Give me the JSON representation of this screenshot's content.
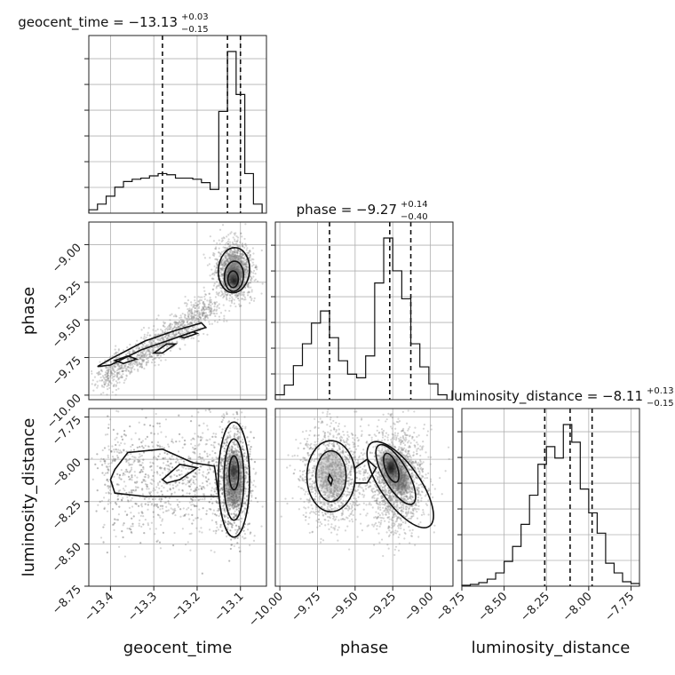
{
  "chart_data": {
    "type": "corner",
    "parameters": [
      "geocent_time",
      "phase",
      "luminosity_distance"
    ],
    "axis_labels": {
      "geocent_time": "geocent_time",
      "phase": "phase",
      "luminosity_distance": "luminosity_distance"
    },
    "ranges": {
      "geocent_time": [
        -13.45,
        -13.04
      ],
      "phase": [
        -10.03,
        -8.85
      ],
      "luminosity_distance": [
        -8.75,
        -7.7
      ]
    },
    "ticks": {
      "geocent_time": [
        -13.4,
        -13.3,
        -13.2,
        -13.1
      ],
      "phase": [
        -10.0,
        -9.75,
        -9.5,
        -9.25,
        -9.0
      ],
      "luminosity_distance": [
        -8.75,
        -8.5,
        -8.25,
        -8.0,
        -7.75
      ]
    },
    "tick_labels": {
      "geocent_time": [
        "−13.4",
        "−13.3",
        "−13.2",
        "−13.1"
      ],
      "phase": [
        "−10.00",
        "−9.75",
        "−9.50",
        "−9.25",
        "−9.00"
      ],
      "luminosity_distance": [
        "−8.75",
        "−8.50",
        "−8.25",
        "−8.00",
        "−7.75"
      ]
    },
    "titles": {
      "geocent_time": {
        "main": "geocent_time = −13.13",
        "sup": "+0.03",
        "sub": "−0.15"
      },
      "phase": {
        "main": "phase = −9.27",
        "sup": "+0.14",
        "sub": "−0.40"
      },
      "luminosity_distance": {
        "main": "luminosity_distance = −8.11",
        "sup": "+0.13",
        "sub": "−0.15"
      }
    },
    "quantiles": {
      "geocent_time": [
        -13.28,
        -13.13,
        -13.1
      ],
      "phase": [
        -9.67,
        -9.27,
        -9.13
      ],
      "luminosity_distance": [
        -8.26,
        -8.11,
        -7.98
      ]
    },
    "histograms": {
      "geocent_time": {
        "edges": [
          -13.45,
          -13.43,
          -13.41,
          -13.39,
          -13.37,
          -13.35,
          -13.33,
          -13.31,
          -13.29,
          -13.27,
          -13.25,
          -13.23,
          -13.21,
          -13.19,
          -13.17,
          -13.15,
          -13.13,
          -13.11,
          -13.09,
          -13.07,
          -13.05
        ],
        "counts": [
          0.3,
          0.8,
          1.5,
          2.3,
          2.8,
          3.0,
          3.1,
          3.3,
          3.5,
          3.4,
          3.1,
          3.1,
          3.0,
          2.7,
          2.1,
          9.0,
          14.3,
          10.5,
          3.5,
          0.8
        ]
      },
      "phase": {
        "edges": [
          -10.03,
          -9.97,
          -9.91,
          -9.85,
          -9.79,
          -9.73,
          -9.67,
          -9.61,
          -9.55,
          -9.49,
          -9.43,
          -9.37,
          -9.31,
          -9.25,
          -9.19,
          -9.13,
          -9.07,
          -9.01,
          -8.95,
          -8.89
        ],
        "counts": [
          0.4,
          1.2,
          2.8,
          4.6,
          6.3,
          7.3,
          5.1,
          3.2,
          2.1,
          1.8,
          3.6,
          9.6,
          13.3,
          10.6,
          8.3,
          4.6,
          2.7,
          1.3,
          0.4
        ]
      },
      "luminosity_distance": {
        "edges": [
          -8.75,
          -8.7,
          -8.65,
          -8.6,
          -8.55,
          -8.5,
          -8.45,
          -8.4,
          -8.35,
          -8.3,
          -8.25,
          -8.2,
          -8.15,
          -8.1,
          -8.05,
          -8.0,
          -7.95,
          -7.9,
          -7.85,
          -7.8,
          -7.75,
          -7.7
        ],
        "counts": [
          0.1,
          0.2,
          0.4,
          0.8,
          1.5,
          2.8,
          4.5,
          7.0,
          10.3,
          13.8,
          15.8,
          14.5,
          18.3,
          16.3,
          11.0,
          8.3,
          6.0,
          2.6,
          1.5,
          0.5,
          0.3
        ]
      }
    },
    "grid": true
  }
}
